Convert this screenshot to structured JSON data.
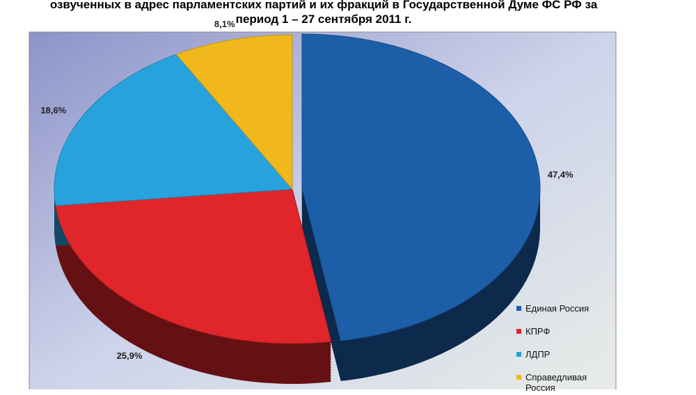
{
  "chart_data": {
    "type": "pie",
    "title": "озвученных в адрес парламентских партий и их фракций в Государственной Думе ФС РФ за период 1 – 27 сентября 2011 г.",
    "categories": [
      "Единая Россия",
      "КПРФ",
      "ЛДПР",
      "Справедливая Россия"
    ],
    "values": [
      47.4,
      25.9,
      18.6,
      8.1
    ],
    "value_labels": [
      "47,4%",
      "25,9%",
      "18,6%",
      "8,1%"
    ],
    "colors": [
      "#1d5ea8",
      "#e0262a",
      "#27a2dc",
      "#f0b81c"
    ]
  }
}
